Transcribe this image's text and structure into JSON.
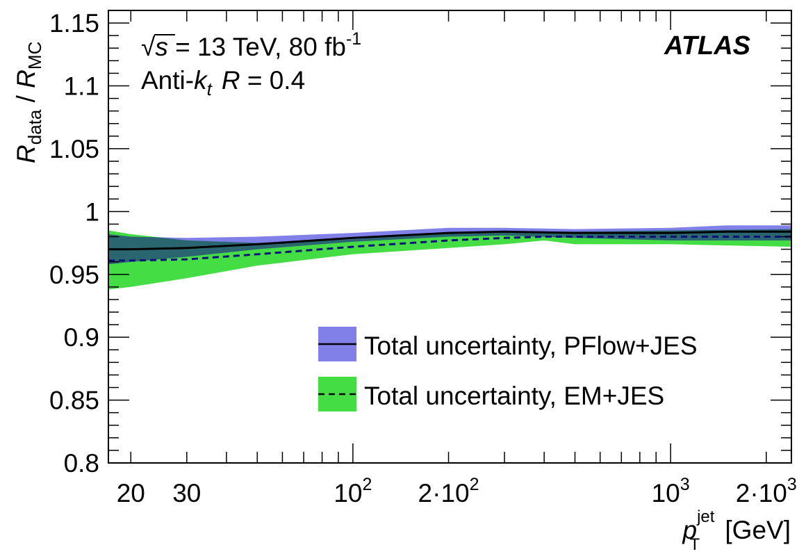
{
  "chart_data": {
    "type": "area",
    "x_scale": "log",
    "xlim": [
      17,
      2400
    ],
    "ylim": [
      0.8,
      1.16
    ],
    "xlabel": {
      "main": "p",
      "sup": "jet",
      "sub": "T",
      "unit": " [GeV]"
    },
    "ylabel": {
      "r1": "R",
      "s1": "data",
      "sep": " / ",
      "r2": "R",
      "s2": "MC"
    },
    "x_tick_labels": [
      {
        "value": 20,
        "base": "20"
      },
      {
        "value": 30,
        "base": "30"
      },
      {
        "value": 100,
        "base": "10",
        "exp": "2"
      },
      {
        "value": 200,
        "base": "2·10",
        "exp": "2"
      },
      {
        "value": 1000,
        "base": "10",
        "exp": "3"
      },
      {
        "value": 2000,
        "base": "2·10",
        "exp": "3"
      }
    ],
    "y_tick_labels": [
      {
        "value": 0.8,
        "label": "0.8"
      },
      {
        "value": 0.85,
        "label": "0.85"
      },
      {
        "value": 0.9,
        "label": "0.9"
      },
      {
        "value": 0.95,
        "label": "0.95"
      },
      {
        "value": 1.0,
        "label": "1"
      },
      {
        "value": 1.05,
        "label": "1.05"
      },
      {
        "value": 1.1,
        "label": "1.1"
      },
      {
        "value": 1.15,
        "label": "1.15"
      }
    ],
    "annotations": {
      "experiment": "ATLAS",
      "energy": {
        "sqrt": "√",
        "s": "s",
        "rest": " = 13 TeV, 80 fb",
        "exp": "-1"
      },
      "jets": {
        "pre": "Anti-",
        "k": "k",
        "ksub": "t",
        "r": "R",
        "rest": " = 0.4"
      }
    },
    "legend_position": "lower-right",
    "series": [
      {
        "name": "Total uncertainty, PFlow+JES",
        "line_style": "solid",
        "line_color": "#000000",
        "band_color": "#8080e8",
        "x": [
          17,
          20,
          30,
          50,
          100,
          200,
          300,
          500,
          1000,
          1500,
          2400
        ],
        "y": [
          0.97,
          0.97,
          0.971,
          0.974,
          0.979,
          0.983,
          0.984,
          0.983,
          0.983,
          0.984,
          0.984
        ],
        "lower": [
          0.958,
          0.96,
          0.964,
          0.97,
          0.976,
          0.98,
          0.981,
          0.979,
          0.977,
          0.977,
          0.977
        ],
        "upper": [
          0.982,
          0.98,
          0.979,
          0.98,
          0.983,
          0.987,
          0.987,
          0.986,
          0.987,
          0.989,
          0.989
        ]
      },
      {
        "name": "Total uncertainty, EM+JES",
        "line_style": "dashed",
        "line_color": "#000000",
        "band_color": "#44dd44",
        "x": [
          17,
          20,
          30,
          50,
          100,
          200,
          300,
          400,
          500,
          1000,
          2400
        ],
        "y": [
          0.961,
          0.961,
          0.962,
          0.966,
          0.972,
          0.977,
          0.979,
          0.98,
          0.98,
          0.98,
          0.98
        ],
        "lower": [
          0.938,
          0.94,
          0.947,
          0.957,
          0.966,
          0.971,
          0.974,
          0.977,
          0.974,
          0.974,
          0.972
        ],
        "upper": [
          0.985,
          0.982,
          0.977,
          0.975,
          0.978,
          0.983,
          0.984,
          0.984,
          0.984,
          0.985,
          0.986
        ]
      }
    ],
    "overlap_color": "#2a6670"
  }
}
